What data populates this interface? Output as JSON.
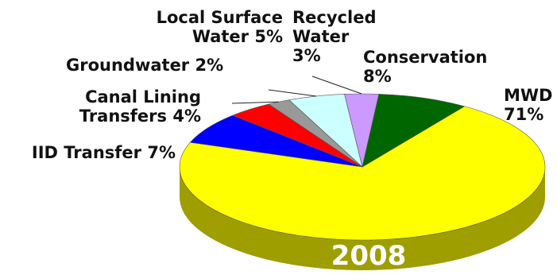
{
  "chart_data": {
    "type": "pie",
    "style": "3d",
    "year_label": "2008",
    "slices": [
      {
        "label_lines": [
          "MWD",
          "71%"
        ],
        "value": 71,
        "color": "#ffff00",
        "side": "#9e9e00"
      },
      {
        "label_lines": [
          "IID Transfer 7%"
        ],
        "value": 7,
        "color": "#0000ff",
        "side": "#00009c"
      },
      {
        "label_lines": [
          "Canal Lining",
          "Transfers 4%"
        ],
        "value": 4,
        "color": "#ff0000",
        "side": "#9c0000"
      },
      {
        "label_lines": [
          "Groundwater 2%"
        ],
        "value": 2,
        "color": "#999999",
        "side": "#5c5c5c"
      },
      {
        "label_lines": [
          "Local Surface",
          "Water  5%"
        ],
        "value": 5,
        "color": "#ccffff",
        "side": "#7fb0b0"
      },
      {
        "label_lines": [
          "Recycled",
          "Water",
          "3%"
        ],
        "value": 3,
        "color": "#cc99ff",
        "side": "#7f5f9f"
      },
      {
        "label_lines": [
          "Conservation",
          "8%"
        ],
        "value": 8,
        "color": "#006600",
        "side": "#003300"
      }
    ]
  }
}
